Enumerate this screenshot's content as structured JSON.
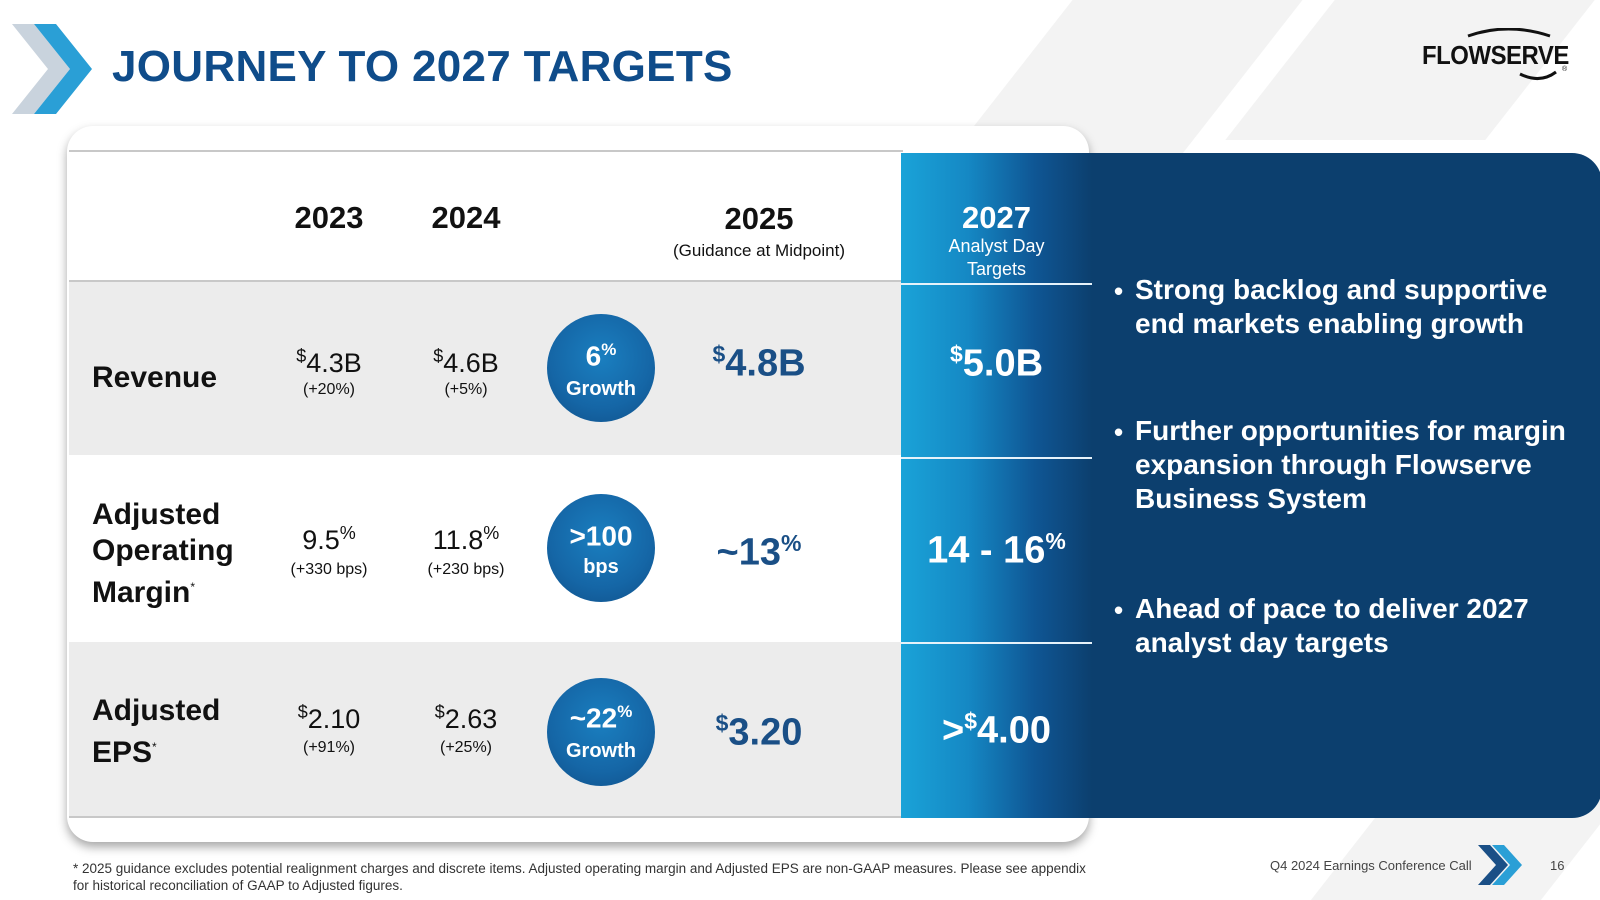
{
  "header": {
    "title": "JOURNEY TO 2027 TARGETS",
    "logo_text": "FLOWSERVE",
    "logo_mark": "®"
  },
  "table": {
    "columns": {
      "y2023": "2023",
      "y2024": "2024",
      "y2025": "2025",
      "y2025_sub": "(Guidance at Midpoint)",
      "y2027": "2027",
      "y2027_sub1": "Analyst Day",
      "y2027_sub2": "Targets"
    },
    "rows": [
      {
        "label_lines": [
          "Revenue"
        ],
        "label_mark": "",
        "v2023_prefix": "$",
        "v2023": "4.3B",
        "v2023_suffix": "",
        "c2023": "(+20%)",
        "v2024_prefix": "$",
        "v2024": "4.6B",
        "v2024_suffix": "",
        "c2024": "(+5%)",
        "bubble_main": "6",
        "bubble_suffix": "%",
        "bubble_sub": "Growth",
        "v2025_pre": "",
        "v2025_prefix": "$",
        "v2025": "4.8B",
        "v2025_suffix": "",
        "v2027_pre": "",
        "v2027_prefix": "$",
        "v2027": "5.0B",
        "v2027_suffix": ""
      },
      {
        "label_lines": [
          "Adjusted",
          "Operating",
          "Margin"
        ],
        "label_mark": "*",
        "v2023_prefix": "",
        "v2023": "9.5",
        "v2023_suffix": "%",
        "c2023": "(+330 bps)",
        "v2024_prefix": "",
        "v2024": "11.8",
        "v2024_suffix": "%",
        "c2024": "(+230 bps)",
        "bubble_main": ">100",
        "bubble_suffix": "",
        "bubble_sub": "bps",
        "v2025_pre": "~",
        "v2025_prefix": "",
        "v2025": "13",
        "v2025_suffix": "%",
        "v2027_pre": "",
        "v2027_prefix": "",
        "v2027": "14 - 16",
        "v2027_suffix": "%"
      },
      {
        "label_lines": [
          "Adjusted",
          "EPS"
        ],
        "label_mark": "*",
        "v2023_prefix": "$",
        "v2023": "2.10",
        "v2023_suffix": "",
        "c2023": "(+91%)",
        "v2024_prefix": "$",
        "v2024": "2.63",
        "v2024_suffix": "",
        "c2024": "(+25%)",
        "bubble_main": "~22",
        "bubble_suffix": "%",
        "bubble_sub": "Growth",
        "v2025_pre": "",
        "v2025_prefix": "$",
        "v2025": "3.20",
        "v2025_suffix": "",
        "v2027_pre": ">",
        "v2027_prefix": "$",
        "v2027": "4.00",
        "v2027_suffix": ""
      }
    ]
  },
  "bullets": [
    "Strong backlog and supportive end markets enabling growth",
    "Further opportunities for margin expansion through Flowserve Business System",
    "Ahead of pace to deliver 2027 analyst day targets"
  ],
  "bullet_char": "•",
  "footnote": "* 2025 guidance excludes potential realignment charges and discrete items. Adjusted operating margin and Adjusted EPS are non-GAAP measures. Please see appendix for historical reconciliation of GAAP to Adjusted figures.",
  "footer": {
    "event": "Q4 2024 Earnings Conference Call",
    "page": "16"
  },
  "colors": {
    "title_blue": "#0f4c8a",
    "panel_navy": "#0c3f6e",
    "bubble_blue": "#1566a6",
    "accent_cyan": "#1aa3d8"
  }
}
